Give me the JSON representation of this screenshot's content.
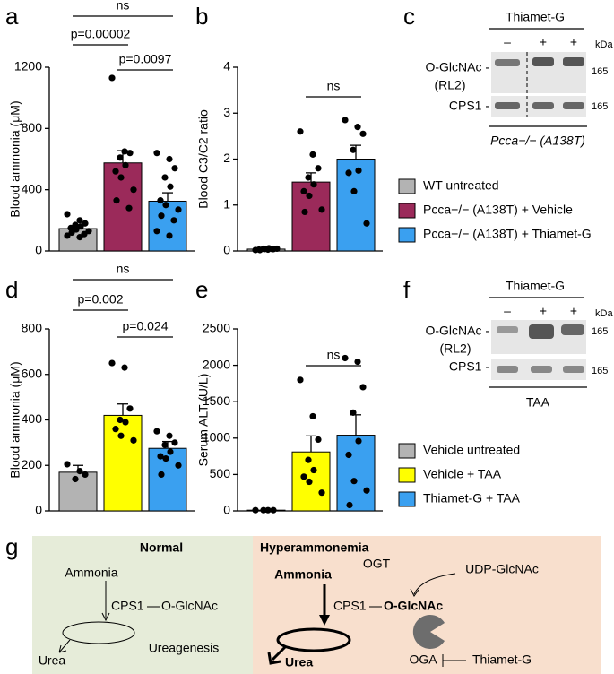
{
  "panel_labels": [
    "a",
    "b",
    "c",
    "d",
    "e",
    "f",
    "g"
  ],
  "chart_data": [
    {
      "type": "bar",
      "ylabel": "Blood ammonia (μM)",
      "ylim": [
        0,
        1200
      ],
      "yticks": [
        0,
        400,
        800,
        1200
      ],
      "annotations": [
        "ns",
        "p=0.00002",
        "p=0.0097"
      ],
      "series": [
        {
          "name": "WT untreated",
          "color": "#b3b3b3",
          "value": 146,
          "error": 15,
          "points": [
            240,
            200,
            180,
            170,
            160,
            150,
            140,
            130,
            120,
            110,
            100,
            90
          ]
        },
        {
          "name": "Pcca−/− (A138T) + Vehicle",
          "color": "#9b2a5a",
          "value": 575,
          "error": 80,
          "points": [
            1130,
            650,
            640,
            610,
            560,
            520,
            480,
            400,
            330,
            280
          ]
        },
        {
          "name": "Pcca−/− (A138T) + Thiamet-G",
          "color": "#3aa0f0",
          "value": 325,
          "error": 55,
          "points": [
            640,
            600,
            540,
            480,
            420,
            330,
            300,
            270,
            230,
            200,
            130,
            100
          ]
        }
      ]
    },
    {
      "type": "bar",
      "ylabel": "Blood C3/C2 ratio",
      "ylim": [
        0,
        4
      ],
      "yticks": [
        0,
        1,
        2,
        3,
        4
      ],
      "annotations": [
        "ns"
      ],
      "series": [
        {
          "color": "#b3b3b3",
          "value": 0.04,
          "error": 0.01,
          "points": [
            0.02,
            0.03,
            0.04,
            0.05,
            0.06,
            0.03,
            0.04,
            0.05,
            0.02,
            0.04
          ]
        },
        {
          "color": "#9b2a5a",
          "value": 1.5,
          "error": 0.2,
          "points": [
            2.6,
            2.1,
            1.8,
            1.6,
            1.45,
            1.3,
            1.2,
            0.9,
            0.85
          ]
        },
        {
          "color": "#3aa0f0",
          "value": 2.0,
          "error": 0.3,
          "points": [
            2.85,
            2.7,
            2.55,
            2.2,
            1.75,
            1.7,
            1.3,
            0.6
          ]
        }
      ]
    },
    {
      "type": "bar",
      "ylabel": "Blood ammonia (μM)",
      "ylim": [
        0,
        800
      ],
      "yticks": [
        0,
        200,
        400,
        600,
        800
      ],
      "annotations": [
        "ns",
        "p=0.002",
        "p=0.024"
      ],
      "series": [
        {
          "name": "Vehicle untreated",
          "color": "#b3b3b3",
          "value": 170,
          "error": 30,
          "points": [
            205,
            175,
            160,
            140
          ]
        },
        {
          "name": "Vehicle + TAA",
          "color": "#ffff00",
          "value": 420,
          "error": 50,
          "points": [
            650,
            630,
            450,
            400,
            390,
            360,
            330,
            310
          ]
        },
        {
          "name": "Thiamet-G + TAA",
          "color": "#3aa0f0",
          "value": 275,
          "error": 30,
          "points": [
            350,
            330,
            300,
            290,
            260,
            240,
            230,
            200,
            160
          ]
        }
      ]
    },
    {
      "type": "bar",
      "ylabel": "Serum ALT (U/L)",
      "ylim": [
        0,
        2500
      ],
      "yticks": [
        0,
        500,
        1000,
        1500,
        2000,
        2500
      ],
      "annotations": [
        "ns"
      ],
      "series": [
        {
          "color": "#b3b3b3",
          "value": 10,
          "error": 2,
          "points": [
            10,
            10,
            10,
            10
          ]
        },
        {
          "color": "#ffff00",
          "value": 810,
          "error": 220,
          "points": [
            1800,
            1300,
            980,
            700,
            560,
            470,
            400,
            250
          ]
        },
        {
          "color": "#3aa0f0",
          "value": 1040,
          "error": 280,
          "points": [
            2100,
            2050,
            1700,
            1350,
            960,
            770,
            410,
            280,
            80
          ]
        }
      ]
    }
  ],
  "blot_c": {
    "treatment": "Thiamet-G",
    "lanes": [
      "–",
      "+",
      "+"
    ],
    "unit": "kDa",
    "antibody": "O-GlcNAc -",
    "clone": "(RL2)",
    "size_1": "165",
    "protein": "CPS1 -",
    "size_2": "165",
    "genotype": "Pcca−/− (A138T)"
  },
  "blot_f": {
    "treatment": "Thiamet-G",
    "lanes": [
      "–",
      "+",
      "+"
    ],
    "unit": "kDa",
    "antibody": "O-GlcNAc -",
    "clone": "(RL2)",
    "size_1": "165",
    "protein": "CPS1 -",
    "size_2": "165",
    "condition": "TAA"
  },
  "diagram": {
    "normal": {
      "title": "Normal",
      "ammonia": "Ammonia",
      "enzyme": "CPS1",
      "modification": "O-GlcNAc",
      "urea": "Urea",
      "process": "Ureagenesis"
    },
    "hyper": {
      "title": "Hyperammonemia",
      "ammonia": "Ammonia",
      "enzyme": "CPS1",
      "modification": "O-GlcNAc",
      "ogt": "OGT",
      "substrate": "UDP-GlcNAc",
      "urea": "Urea",
      "oga": "OGA",
      "inhibitor": "Thiamet-G"
    }
  }
}
